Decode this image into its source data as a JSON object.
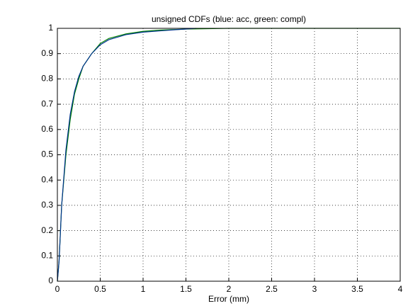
{
  "chart_data": {
    "type": "line",
    "title": "unsigned CDFs (blue: acc, green: compl)",
    "x_label": "Error (mm)",
    "xlim": [
      0,
      4
    ],
    "xticks": [
      0,
      0.5,
      1,
      1.5,
      2,
      2.5,
      3,
      3.5,
      4
    ],
    "ylim": [
      0,
      1
    ],
    "yticks": [
      0,
      0.1,
      0.2,
      0.3,
      0.4,
      0.5,
      0.6,
      0.7,
      0.8,
      0.9,
      1
    ],
    "grid": true,
    "series": [
      {
        "color": "#00338f",
        "x": [
          0,
          0.02,
          0.05,
          0.1,
          0.15,
          0.2,
          0.25,
          0.3,
          0.4,
          0.5,
          0.6,
          0.8,
          1.0,
          1.2,
          1.4,
          1.62
        ],
        "values": [
          0,
          0.08,
          0.3,
          0.52,
          0.66,
          0.75,
          0.81,
          0.85,
          0.9,
          0.935,
          0.955,
          0.975,
          0.985,
          0.99,
          0.995,
          1
        ]
      },
      {
        "color": "#008000",
        "x": [
          0,
          0.02,
          0.05,
          0.1,
          0.15,
          0.2,
          0.25,
          0.3,
          0.4,
          0.5,
          0.6,
          0.8,
          1.0,
          1.2,
          1.5,
          2.0,
          4
        ],
        "values": [
          0,
          0.08,
          0.3,
          0.5,
          0.64,
          0.74,
          0.8,
          0.85,
          0.9,
          0.94,
          0.96,
          0.978,
          0.988,
          0.993,
          0.997,
          1,
          1
        ]
      }
    ]
  }
}
